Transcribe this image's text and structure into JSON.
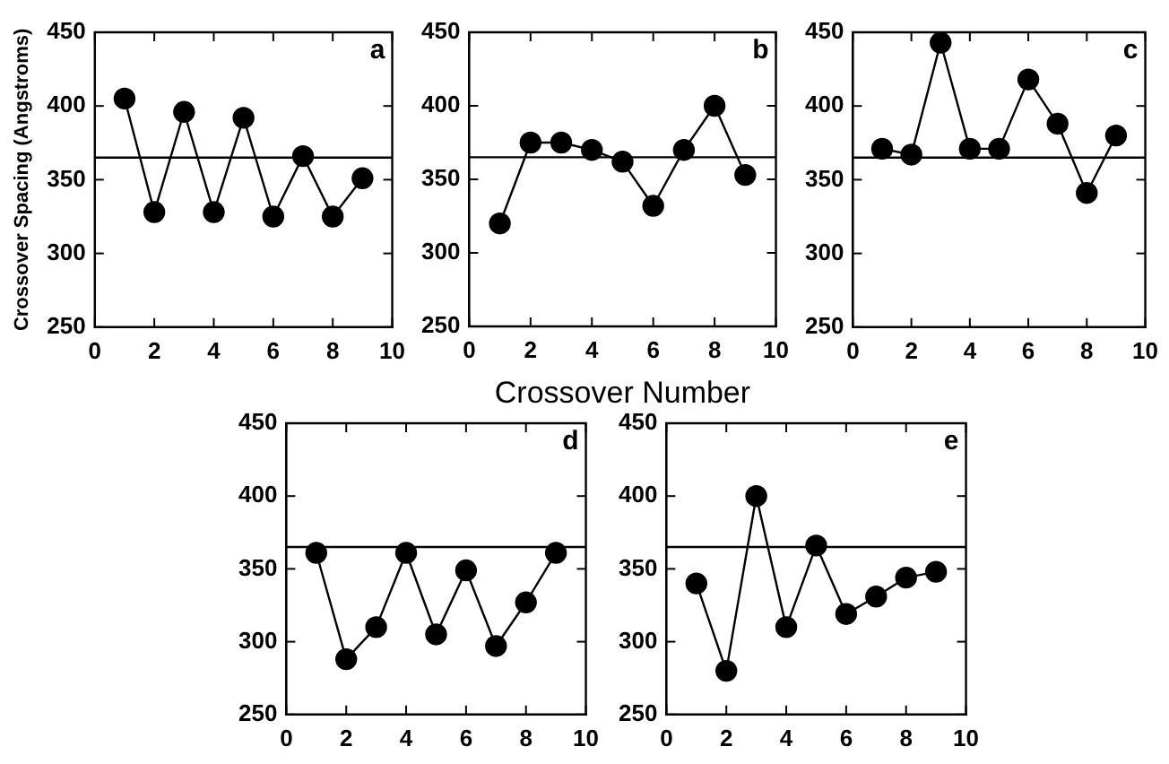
{
  "chart_data": [
    {
      "type": "line",
      "ylabel": "Crossover Spacing (Angstroms)",
      "annotations": [
        "a"
      ],
      "x": [
        1,
        2,
        3,
        4,
        5,
        6,
        7,
        8,
        9
      ],
      "values": [
        405,
        328,
        396,
        328,
        392,
        325,
        366,
        325,
        351
      ],
      "color": "#000000",
      "marker": "circle",
      "xlim": [
        0,
        10
      ],
      "xticks": [
        0,
        2,
        4,
        6,
        8,
        10
      ],
      "ylim": [
        250,
        450
      ],
      "yticks": [
        250,
        300,
        350,
        400,
        450
      ],
      "ref_lines": [
        {
          "axis": "y",
          "value": 365
        }
      ],
      "legend": false,
      "grid": false
    },
    {
      "type": "line",
      "xlabel": "Crossover Number",
      "annotations": [
        "b"
      ],
      "x": [
        1,
        2,
        3,
        4,
        5,
        6,
        7,
        8,
        9
      ],
      "values": [
        320,
        375,
        375,
        370,
        362,
        332,
        370,
        400,
        353
      ],
      "color": "#000000",
      "marker": "circle",
      "xlim": [
        0,
        10
      ],
      "xticks": [
        0,
        2,
        4,
        6,
        8,
        10
      ],
      "ylim": [
        250,
        450
      ],
      "yticks": [
        250,
        300,
        350,
        400,
        450
      ],
      "ref_lines": [
        {
          "axis": "y",
          "value": 365
        }
      ],
      "legend": false,
      "grid": false
    },
    {
      "type": "line",
      "annotations": [
        "c"
      ],
      "x": [
        1,
        2,
        3,
        4,
        5,
        6,
        7,
        8,
        9
      ],
      "values": [
        371,
        367,
        443,
        371,
        371,
        418,
        388,
        341,
        380
      ],
      "color": "#000000",
      "marker": "circle",
      "xlim": [
        0,
        10
      ],
      "xticks": [
        0,
        2,
        4,
        6,
        8,
        10
      ],
      "ylim": [
        250,
        450
      ],
      "yticks": [
        250,
        300,
        350,
        400,
        450
      ],
      "ref_lines": [
        {
          "axis": "y",
          "value": 365
        }
      ],
      "legend": false,
      "grid": false
    },
    {
      "type": "line",
      "annotations": [
        "d"
      ],
      "x": [
        1,
        2,
        3,
        4,
        5,
        6,
        7,
        8,
        9
      ],
      "values": [
        361,
        288,
        310,
        361,
        305,
        349,
        297,
        327,
        361
      ],
      "color": "#000000",
      "marker": "circle",
      "xlim": [
        0,
        10
      ],
      "xticks": [
        0,
        2,
        4,
        6,
        8,
        10
      ],
      "ylim": [
        250,
        450
      ],
      "yticks": [
        250,
        300,
        350,
        400,
        450
      ],
      "ref_lines": [
        {
          "axis": "y",
          "value": 365
        }
      ],
      "legend": false,
      "grid": false
    },
    {
      "type": "line",
      "annotations": [
        "e"
      ],
      "x": [
        1,
        2,
        3,
        4,
        5,
        6,
        7,
        8,
        9
      ],
      "values": [
        340,
        280,
        400,
        310,
        366,
        319,
        331,
        344,
        348
      ],
      "color": "#000000",
      "marker": "circle",
      "xlim": [
        0,
        10
      ],
      "xticks": [
        0,
        2,
        4,
        6,
        8,
        10
      ],
      "ylim": [
        250,
        450
      ],
      "yticks": [
        250,
        300,
        350,
        400,
        450
      ],
      "ref_lines": [
        {
          "axis": "y",
          "value": 365
        }
      ],
      "legend": false,
      "grid": false
    }
  ]
}
